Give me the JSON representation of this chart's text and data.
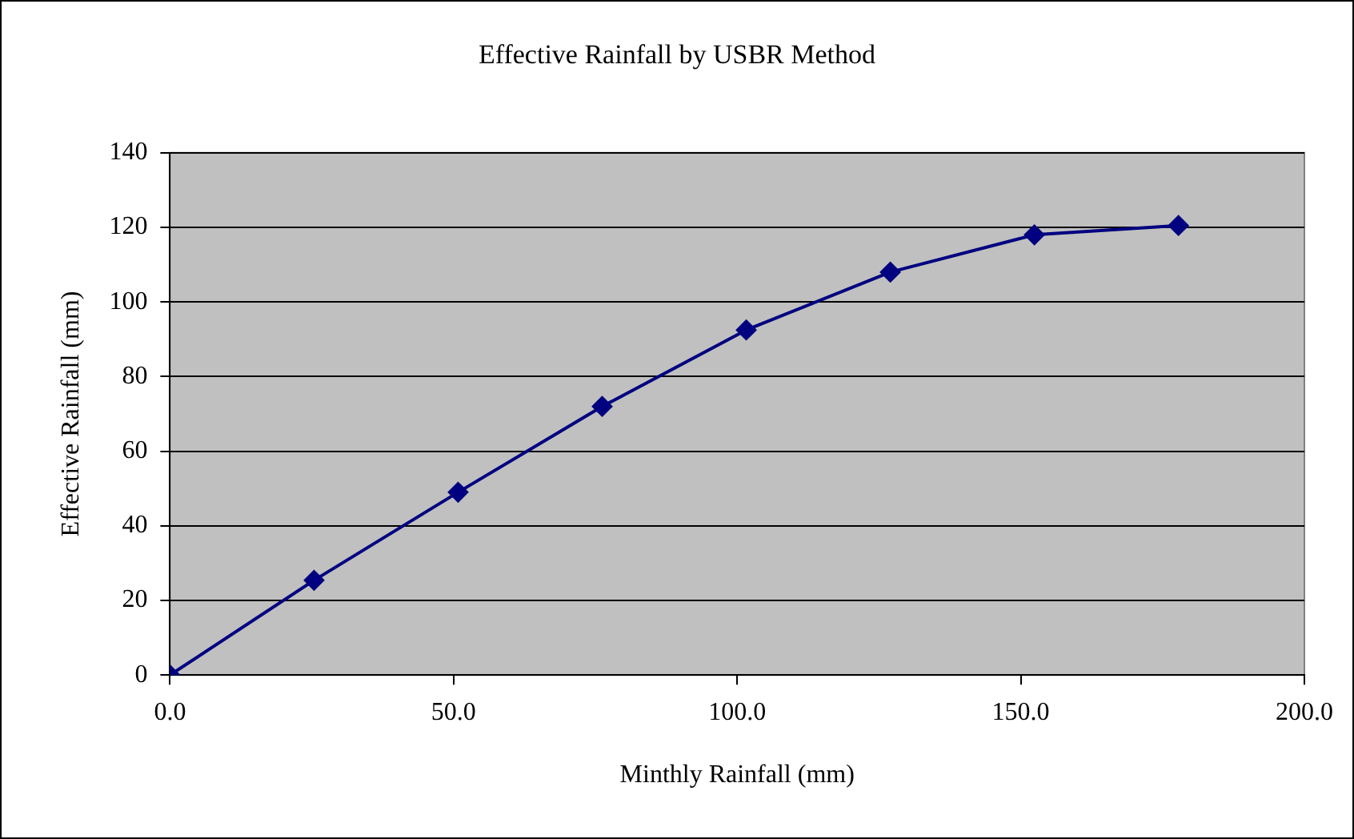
{
  "chart_data": {
    "type": "line",
    "title": "Effective Rainfall by USBR Method",
    "xlabel": "Minthly Rainfall (mm)",
    "ylabel": "Effective Rainfall (mm)",
    "x": [
      0,
      25.4,
      50.8,
      76.2,
      101.6,
      127,
      152.4,
      177.8
    ],
    "series": [
      {
        "color": "#000080",
        "values": [
          0,
          25.4,
          49,
          72,
          92.5,
          108,
          118,
          120.5
        ]
      }
    ],
    "xlim": [
      0,
      200
    ],
    "xticks": [
      {
        "value": 0,
        "label": "0.0"
      },
      {
        "value": 50,
        "label": "50.0"
      },
      {
        "value": 100,
        "label": "100.0"
      },
      {
        "value": 150,
        "label": "150.0"
      },
      {
        "value": 200,
        "label": "200.0"
      }
    ],
    "ylim": [
      0,
      140
    ],
    "yticks": [
      0,
      20,
      40,
      60,
      80,
      100,
      120,
      140
    ],
    "grid": "y",
    "legend": false,
    "marker": "diamond",
    "line_style": "solid"
  }
}
